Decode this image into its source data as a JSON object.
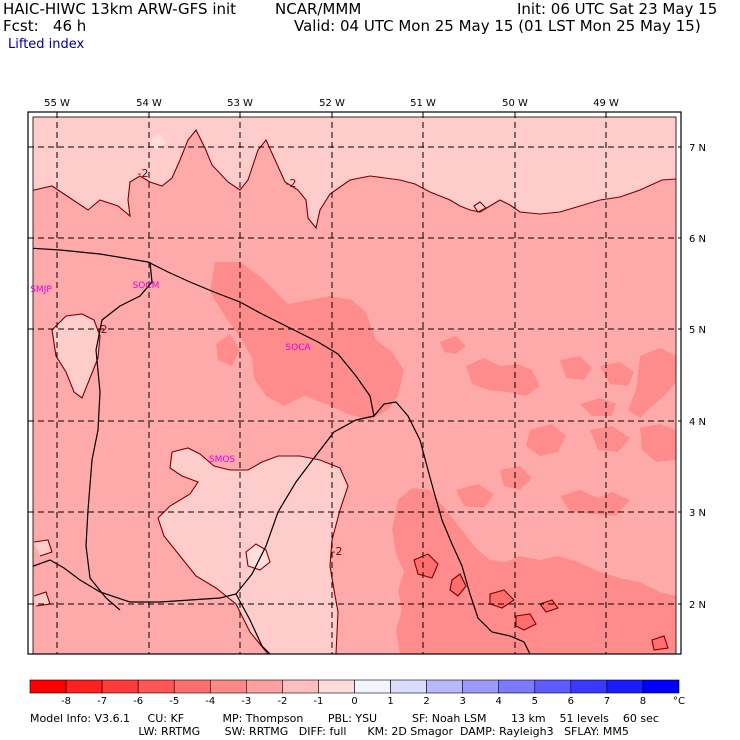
{
  "header": {
    "model_line": "HAIC-HIWC 13km ARW-GFS init",
    "institution": "NCAR/MMM",
    "init_line": "Init: 06 UTC Sat 23 May 15",
    "fcst_line": "Fcst:   46 h",
    "valid_line": "Valid: 04 UTC Mon 25 May 15 (01 LST Mon 25 May 15)",
    "field_name": "Lifted index"
  },
  "map": {
    "lon_labels": [
      "55 W",
      "54 W",
      "53 W",
      "52 W",
      "51 W",
      "50 W",
      "49 W"
    ],
    "lat_labels": [
      "7 N",
      "6 N",
      "5 N",
      "4 N",
      "3 N",
      "2 N"
    ],
    "contour_labels": [
      "-2",
      "-2",
      "-2",
      "-2"
    ],
    "stations": [
      "SMJP",
      "SOCM",
      "SOCA",
      "SMOS"
    ]
  },
  "colorbar": {
    "ticks": [
      "-8",
      "-7",
      "-6",
      "-5",
      "-4",
      "-3",
      "-2",
      "-1",
      "0",
      "1",
      "2",
      "3",
      "4",
      "5",
      "6",
      "7",
      "8"
    ],
    "unit": "°C",
    "colors": [
      "#ff0000",
      "#ff2020",
      "#ff3c3c",
      "#ff5555",
      "#ff6e6e",
      "#ff8888",
      "#ffa0a0",
      "#ffbebe",
      "#ffdcdc",
      "#f4f4ff",
      "#dcdcff",
      "#b8b8ff",
      "#9a9aff",
      "#7b7bff",
      "#5c5cff",
      "#3a3aff",
      "#1c1cff",
      "#0000ff"
    ]
  },
  "footer": {
    "line1": "Model Info: V3.6.1     CU: KF           MP: Thompson       PBL: YSU          SF: Noah LSM       13 km    51 levels    60 sec",
    "line2": "                               LW: RRTMG       SW: RRTMG   DIFF: full      KM: 2D Smagor  DAMP: Rayleigh3   SFLAY: MM5"
  }
}
